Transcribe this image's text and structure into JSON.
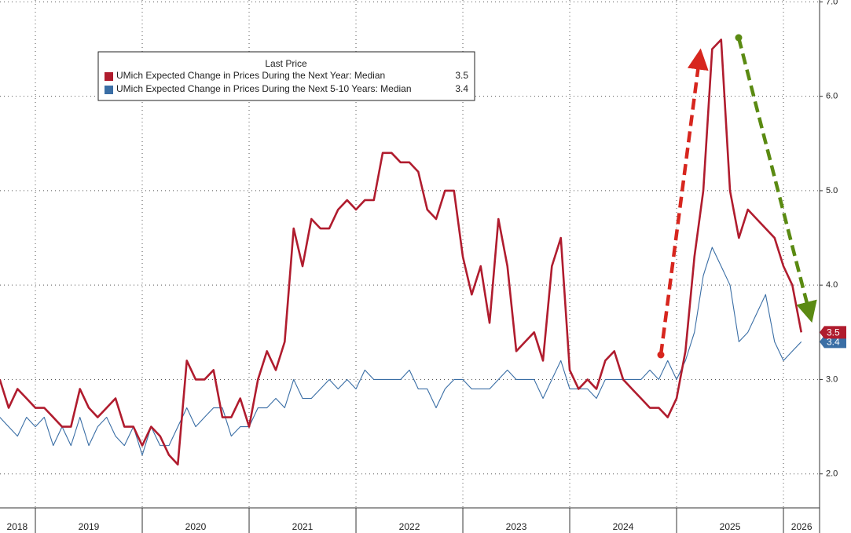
{
  "chart_data": {
    "type": "line",
    "legend_title": "Last Price",
    "x": [
      2018.667,
      2018.75,
      2018.833,
      2018.917,
      2019,
      2019.083,
      2019.167,
      2019.25,
      2019.333,
      2019.417,
      2019.5,
      2019.583,
      2019.667,
      2019.75,
      2019.833,
      2019.917,
      2020,
      2020.083,
      2020.167,
      2020.25,
      2020.333,
      2020.417,
      2020.5,
      2020.583,
      2020.667,
      2020.75,
      2020.833,
      2020.917,
      2021,
      2021.083,
      2021.167,
      2021.25,
      2021.333,
      2021.417,
      2021.5,
      2021.583,
      2021.667,
      2021.75,
      2021.833,
      2021.917,
      2022,
      2022.083,
      2022.167,
      2022.25,
      2022.333,
      2022.417,
      2022.5,
      2022.583,
      2022.667,
      2022.75,
      2022.833,
      2022.917,
      2023,
      2023.083,
      2023.167,
      2023.25,
      2023.333,
      2023.417,
      2023.5,
      2023.583,
      2023.667,
      2023.75,
      2023.833,
      2023.917,
      2024,
      2024.083,
      2024.167,
      2024.25,
      2024.333,
      2024.417,
      2024.5,
      2024.583,
      2024.667,
      2024.75,
      2024.833,
      2024.917,
      2025,
      2025.083,
      2025.167,
      2025.25,
      2025.333,
      2025.417,
      2025.5,
      2025.583,
      2025.667,
      2025.75,
      2025.833,
      2025.917,
      2026,
      2026.083,
      2026.167
    ],
    "series": [
      {
        "name": "UMich Expected Change in Prices During the Next Year: Median",
        "color": "#b01c2e",
        "values": [
          3.0,
          2.7,
          2.9,
          2.8,
          2.7,
          2.7,
          2.6,
          2.5,
          2.5,
          2.9,
          2.7,
          2.6,
          2.7,
          2.8,
          2.5,
          2.5,
          2.3,
          2.5,
          2.4,
          2.2,
          2.1,
          3.2,
          3.0,
          3.0,
          3.1,
          2.6,
          2.6,
          2.8,
          2.5,
          3.0,
          3.3,
          3.1,
          3.4,
          4.6,
          4.2,
          4.7,
          4.6,
          4.6,
          4.8,
          4.9,
          4.8,
          4.9,
          4.9,
          5.4,
          5.4,
          5.3,
          5.3,
          5.2,
          4.8,
          4.7,
          5.0,
          5.0,
          4.3,
          3.9,
          4.2,
          3.6,
          4.7,
          4.2,
          3.3,
          3.4,
          3.5,
          3.2,
          4.2,
          4.5,
          3.1,
          2.9,
          3.0,
          2.9,
          3.2,
          3.3,
          3.0,
          2.9,
          2.8,
          2.7,
          2.7,
          2.6,
          2.8,
          3.3,
          4.3,
          5.0,
          6.5,
          6.6,
          5.0,
          4.5,
          4.8,
          4.7,
          4.6,
          4.5,
          4.2,
          4.0,
          3.5
        ]
      },
      {
        "name": "UMich Expected Change in Prices During the Next 5-10 Years: Median",
        "color": "#3a6ea5",
        "values": [
          2.6,
          2.5,
          2.4,
          2.6,
          2.5,
          2.6,
          2.3,
          2.5,
          2.3,
          2.6,
          2.3,
          2.5,
          2.6,
          2.4,
          2.3,
          2.5,
          2.2,
          2.5,
          2.3,
          2.3,
          2.5,
          2.7,
          2.5,
          2.6,
          2.7,
          2.7,
          2.4,
          2.5,
          2.5,
          2.7,
          2.7,
          2.8,
          2.7,
          3.0,
          2.8,
          2.8,
          2.9,
          3.0,
          2.9,
          3.0,
          2.9,
          3.1,
          3.0,
          3.0,
          3.0,
          3.0,
          3.1,
          2.9,
          2.9,
          2.7,
          2.9,
          3.0,
          3.0,
          2.9,
          2.9,
          2.9,
          3.0,
          3.1,
          3.0,
          3.0,
          3.0,
          2.8,
          3.0,
          3.2,
          2.9,
          2.9,
          2.9,
          2.8,
          3.0,
          3.0,
          3.0,
          3.0,
          3.0,
          3.1,
          3.0,
          3.2,
          3.0,
          3.2,
          3.5,
          4.1,
          4.4,
          4.2,
          4.0,
          3.4,
          3.5,
          3.7,
          3.9,
          3.4,
          3.2,
          3.3,
          3.4
        ]
      }
    ],
    "xlim": [
      2018.669,
      2026.338
    ],
    "xticks": [
      {
        "value": 2018.83,
        "label": "2018"
      },
      {
        "value": 2019.5,
        "label": "2019"
      },
      {
        "value": 2020.5,
        "label": "2020"
      },
      {
        "value": 2021.5,
        "label": "2021"
      },
      {
        "value": 2022.5,
        "label": "2022"
      },
      {
        "value": 2023.5,
        "label": "2023"
      },
      {
        "value": 2024.5,
        "label": "2024"
      },
      {
        "value": 2025.5,
        "label": "2025"
      },
      {
        "value": 2026.17,
        "label": "2026"
      }
    ],
    "ylim": [
      1.64,
      7.02
    ],
    "yticks": [
      {
        "value": 2,
        "label": "2.0"
      },
      {
        "value": 3,
        "label": "3.0"
      },
      {
        "value": 4,
        "label": "4.0"
      },
      {
        "value": 5,
        "label": "5.0"
      },
      {
        "value": 6,
        "label": "6.0"
      },
      {
        "value": 7,
        "label": "7.0"
      }
    ],
    "grid": true
  }
}
